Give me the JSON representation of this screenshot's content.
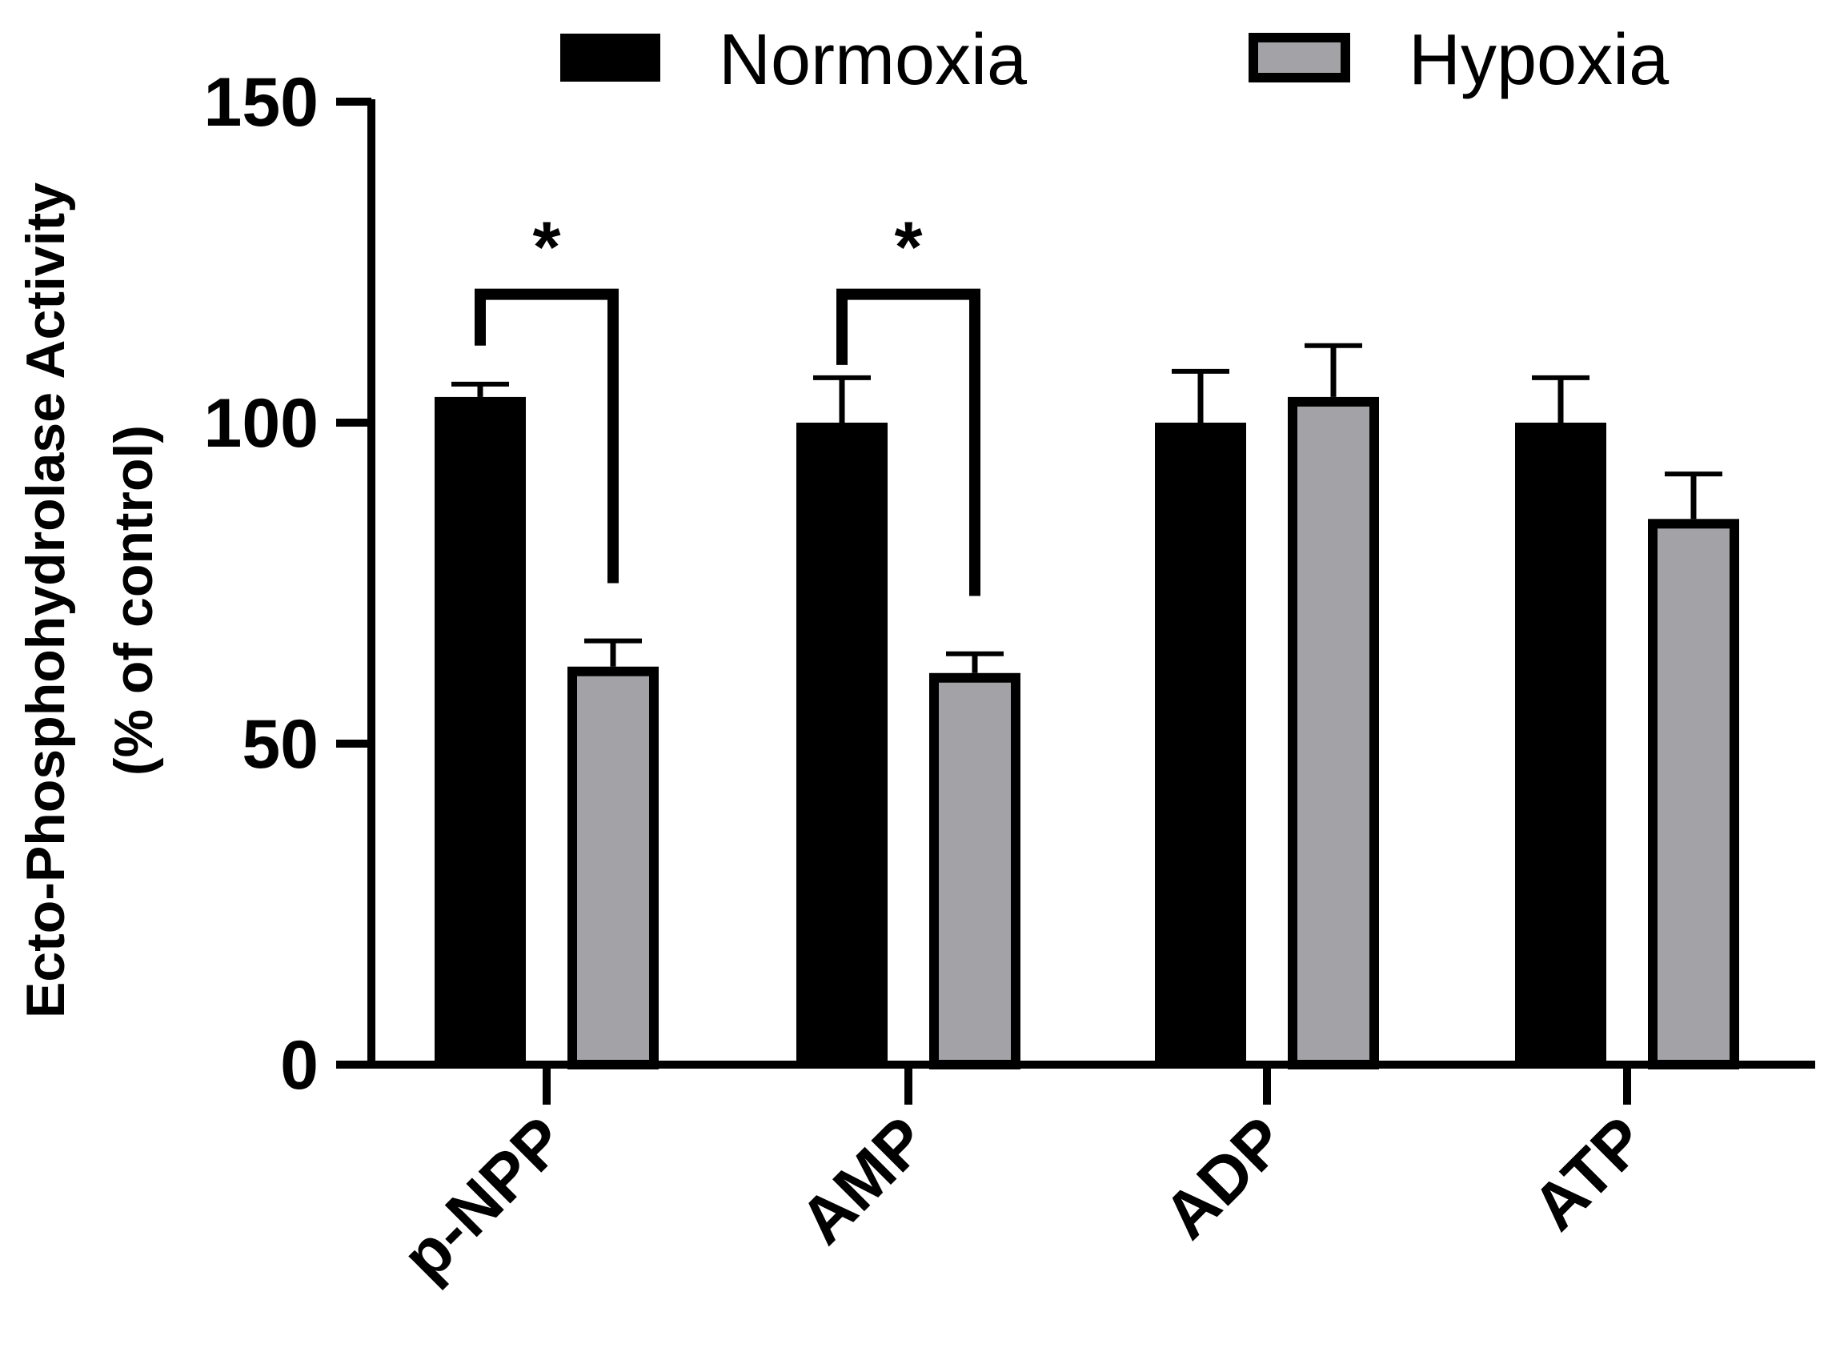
{
  "chart_data": {
    "type": "bar",
    "title": "",
    "xlabel": "",
    "ylabel": {
      "line1": "Ecto-Phosphohydrolase Activity",
      "line2": "(% of control)"
    },
    "ylim": [
      0,
      150
    ],
    "yticks": [
      0,
      50,
      100,
      150
    ],
    "categories": [
      "p-NPP",
      "AMP",
      "ADP",
      "ATP"
    ],
    "series": [
      {
        "name": "Normoxia",
        "color": "#000000",
        "values": [
          104,
          100,
          100,
          100
        ],
        "errors": [
          2,
          7,
          8,
          7
        ]
      },
      {
        "name": "Hypoxia",
        "color": "#a3a3a7",
        "values": [
          62,
          61,
          104,
          85
        ],
        "errors": [
          4,
          3,
          8,
          7
        ]
      }
    ],
    "significance": [
      {
        "category": "p-NPP",
        "label": "*",
        "bracket_y": 120,
        "left_end": 112,
        "right_end": 75
      },
      {
        "category": "AMP",
        "label": "*",
        "bracket_y": 120,
        "left_end": 109,
        "right_end": 73
      }
    ],
    "legend": {
      "position": "top"
    }
  }
}
